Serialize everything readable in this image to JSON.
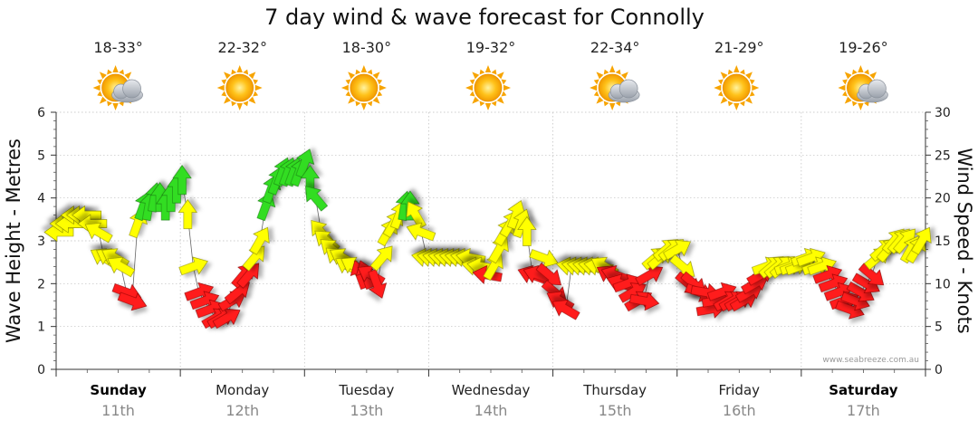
{
  "chart_data": {
    "type": "line",
    "title": "7 day wind & wave forecast for Connolly",
    "ylabel_left": "Wave Height - Metres",
    "ylabel_right": "Wind Speed - Knots",
    "ylim_left": [
      0,
      6
    ],
    "ylim_right": [
      0,
      30
    ],
    "yticks_left": [
      "0",
      "1",
      "2",
      "3",
      "4",
      "5",
      "6"
    ],
    "yticks_right": [
      "0",
      "5",
      "10",
      "15",
      "20",
      "25",
      "30"
    ],
    "credit": "www.seabreeze.com.au",
    "days": [
      {
        "name": "Sunday",
        "date": "11th",
        "temp": "18-33°",
        "weather": "partly-cloudy",
        "bold": true
      },
      {
        "name": "Monday",
        "date": "12th",
        "temp": "22-32°",
        "weather": "sunny",
        "bold": false
      },
      {
        "name": "Tuesday",
        "date": "13th",
        "temp": "18-30°",
        "weather": "sunny",
        "bold": false
      },
      {
        "name": "Wednesday",
        "date": "14th",
        "temp": "19-32°",
        "weather": "sunny",
        "bold": false
      },
      {
        "name": "Thursday",
        "date": "15th",
        "temp": "22-34°",
        "weather": "partly-cloudy",
        "bold": false
      },
      {
        "name": "Friday",
        "date": "16th",
        "temp": "21-29°",
        "weather": "sunny",
        "bold": false
      },
      {
        "name": "Saturday",
        "date": "17th",
        "temp": "19-26°",
        "weather": "partly-cloudy",
        "bold": true
      }
    ],
    "wind_knots": [
      16,
      17,
      17,
      18,
      18,
      18,
      17,
      16,
      13,
      13,
      13,
      12,
      9,
      8,
      17,
      19,
      19,
      20,
      20,
      19,
      20,
      21,
      22,
      18,
      12,
      9,
      8,
      7,
      6,
      6,
      6,
      8,
      9,
      11,
      11,
      13,
      15,
      19,
      21,
      22,
      23,
      23,
      23,
      23,
      24,
      22,
      20,
      16,
      15,
      14,
      13,
      13,
      12,
      12,
      11,
      11,
      11,
      10,
      13,
      16,
      17,
      18,
      19,
      19,
      18,
      16,
      13,
      13,
      13,
      13,
      13,
      13,
      13,
      13,
      13,
      12,
      12,
      11,
      12,
      14,
      16,
      17,
      18,
      17,
      16,
      11,
      11,
      13,
      11,
      9,
      8,
      7,
      12,
      12,
      12,
      12,
      12,
      12,
      12,
      11,
      11,
      10,
      10,
      9,
      8,
      8,
      11,
      13,
      13,
      14,
      14,
      14,
      12,
      10,
      10,
      9,
      9,
      7,
      8,
      9,
      8,
      8,
      8,
      8,
      9,
      10,
      11,
      12,
      12,
      12,
      12,
      12,
      12,
      12,
      13,
      13,
      12,
      12,
      11,
      10,
      9,
      8,
      7,
      8,
      9,
      10,
      11,
      13,
      14,
      14,
      15,
      15,
      15,
      14,
      14,
      15
    ],
    "wind_bearing_deg": [
      270,
      270,
      270,
      270,
      270,
      270,
      270,
      300,
      300,
      300,
      300,
      300,
      110,
      110,
      20,
      20,
      10,
      10,
      0,
      0,
      0,
      0,
      0,
      0,
      70,
      70,
      70,
      70,
      60,
      60,
      60,
      60,
      50,
      40,
      40,
      40,
      30,
      20,
      20,
      20,
      20,
      20,
      20,
      20,
      20,
      0,
      320,
      320,
      310,
      310,
      310,
      300,
      300,
      300,
      340,
      340,
      300,
      160,
      40,
      30,
      30,
      20,
      10,
      0,
      330,
      290,
      280,
      280,
      280,
      280,
      280,
      280,
      280,
      280,
      280,
      280,
      280,
      280,
      30,
      30,
      30,
      30,
      20,
      20,
      0,
      290,
      290,
      110,
      130,
      130,
      300,
      300,
      280,
      280,
      280,
      280,
      280,
      280,
      300,
      300,
      290,
      290,
      70,
      60,
      60,
      100,
      60,
      50,
      50,
      50,
      50,
      60,
      130,
      130,
      130,
      110,
      100,
      80,
      80,
      70,
      60,
      60,
      60,
      60,
      60,
      60,
      60,
      70,
      50,
      50,
      50,
      70,
      70,
      70,
      70,
      70,
      70,
      70,
      70,
      70,
      70,
      70,
      110,
      110,
      120,
      120,
      130,
      50,
      50,
      40,
      40,
      40,
      40,
      30,
      30,
      30
    ]
  }
}
